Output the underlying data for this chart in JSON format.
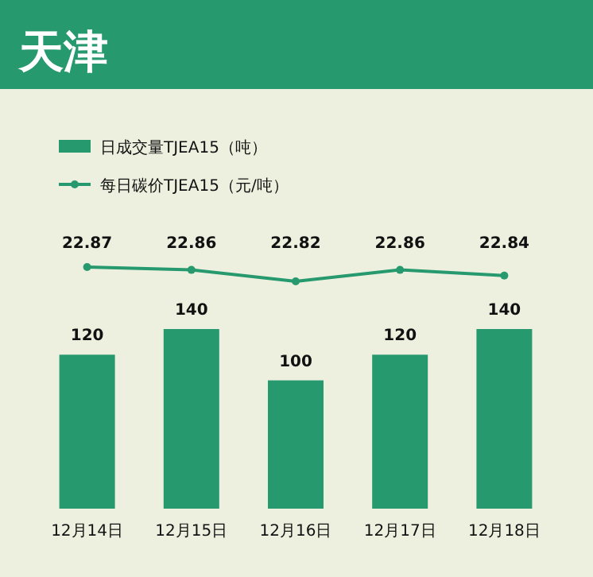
{
  "chart_data": [
    {
      "type": "line",
      "title": "天津",
      "categories": [
        null,
        null,
        null,
        null,
        null
      ],
      "series": [
        {
          "name": "每日碳价TJEA15（元/吨）",
          "color": "#26996f",
          "values": [
            22.87,
            22.86,
            22.82,
            22.86,
            22.84
          ]
        }
      ],
      "data_labels": true,
      "legend": "top left",
      "marker": "circle"
    },
    {
      "type": "bar",
      "categories": [
        "12月14日",
        "12月15日",
        "12月16日",
        "12月17日",
        "12月18日"
      ],
      "series": [
        {
          "name": "日成交量TJEA15（吨）",
          "color": "#26996f",
          "values": [
            120,
            140,
            100,
            120,
            140
          ]
        }
      ],
      "data_labels": true,
      "legend": "top left"
    }
  ]
}
